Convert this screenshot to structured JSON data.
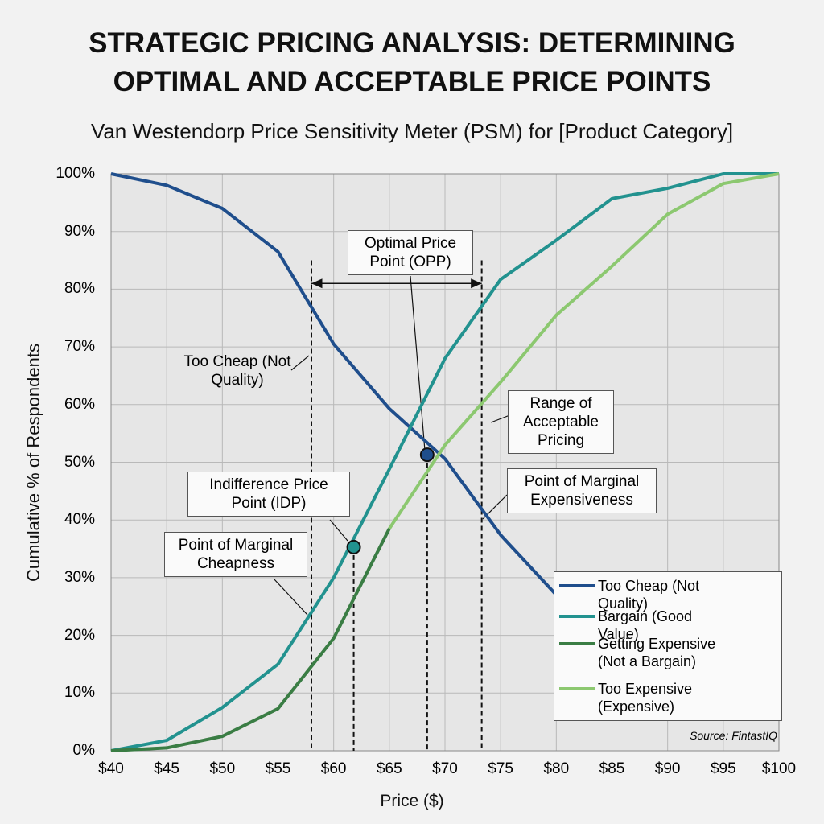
{
  "chart_data": {
    "type": "line",
    "title": "STRATEGIC PRICING ANALYSIS: DETERMINING OPTIMAL AND ACCEPTABLE PRICE POINTS",
    "subtitle": "Van Westendorp Price Sensitivity Meter (PSM) for [Product Category]",
    "x_label": "Price ($)",
    "y_label": "Cumulative % of Respondents",
    "x": [
      40,
      45,
      50,
      55,
      60,
      65,
      70,
      75,
      80,
      85,
      90,
      95,
      100
    ],
    "series": [
      {
        "name": "Too Cheap (Not Quality)",
        "color": "#1f4e8c",
        "values": [
          100,
          98,
          94,
          86.5,
          70.5,
          59.3,
          50.6,
          37.4,
          27,
          null,
          null,
          null,
          null
        ]
      },
      {
        "name": "Bargain (Good Value)",
        "color": "#22928f",
        "values": [
          0,
          1.8,
          7.5,
          15,
          30,
          48.8,
          68,
          81.7,
          88.5,
          95.7,
          97.5,
          100,
          100
        ]
      },
      {
        "name": "Getting Expensive (Not a Bargain)",
        "color": "#3a7d44",
        "values": [
          0,
          0.5,
          2.5,
          7.3,
          19.5,
          38.5,
          null,
          null,
          null,
          null,
          null,
          null,
          null
        ]
      },
      {
        "name": "Too Expensive (Expensive)",
        "color": "#8cc870",
        "values": [
          null,
          null,
          null,
          null,
          null,
          38.5,
          53,
          63.9,
          75.5,
          84,
          93,
          98.3,
          100
        ]
      }
    ],
    "reference_lines": [
      58,
      61.8,
      68.4,
      73.3
    ],
    "markers": [
      {
        "x": 61.8,
        "y": 35.3,
        "color": "#22928f"
      },
      {
        "x": 68.4,
        "y": 51.3,
        "color": "#1f4e8c"
      }
    ],
    "annotations": [
      "Optimal Price Point (OPP)",
      "Too Cheap (Not Quality)",
      "Range of Acceptable Pricing",
      "Point of Marginal Expensiveness",
      "Indifference Price Point (IDP)",
      "Point of Marginal Cheapness"
    ],
    "source": "Source: FintastIQ",
    "xlim": [
      40,
      100
    ],
    "ylim": [
      0,
      100
    ],
    "xticks": [
      {
        "value": 40,
        "label": "$40"
      },
      {
        "value": 45,
        "label": "$45"
      },
      {
        "value": 50,
        "label": "$50"
      },
      {
        "value": 55,
        "label": "$55"
      },
      {
        "value": 60,
        "label": "$60"
      },
      {
        "value": 65,
        "label": "$65"
      },
      {
        "value": 70,
        "label": "$70"
      },
      {
        "value": 75,
        "label": "$75"
      },
      {
        "value": 80,
        "label": "$80"
      },
      {
        "value": 85,
        "label": "$85"
      },
      {
        "value": 90,
        "label": "$90"
      },
      {
        "value": 95,
        "label": "$95"
      },
      {
        "value": 100,
        "label": "$100"
      }
    ],
    "yticks": [
      {
        "value": 0,
        "label": "0%"
      },
      {
        "value": 10,
        "label": "10%"
      },
      {
        "value": 20,
        "label": "20%"
      },
      {
        "value": 30,
        "label": "30%"
      },
      {
        "value": 40,
        "label": "40%"
      },
      {
        "value": 50,
        "label": "50%"
      },
      {
        "value": 60,
        "label": "60%"
      },
      {
        "value": 70,
        "label": "70%"
      },
      {
        "value": 80,
        "label": "80%"
      },
      {
        "value": 90,
        "label": "90%"
      },
      {
        "value": 100,
        "label": "100%"
      }
    ],
    "grid": true,
    "legend": "lower right"
  }
}
